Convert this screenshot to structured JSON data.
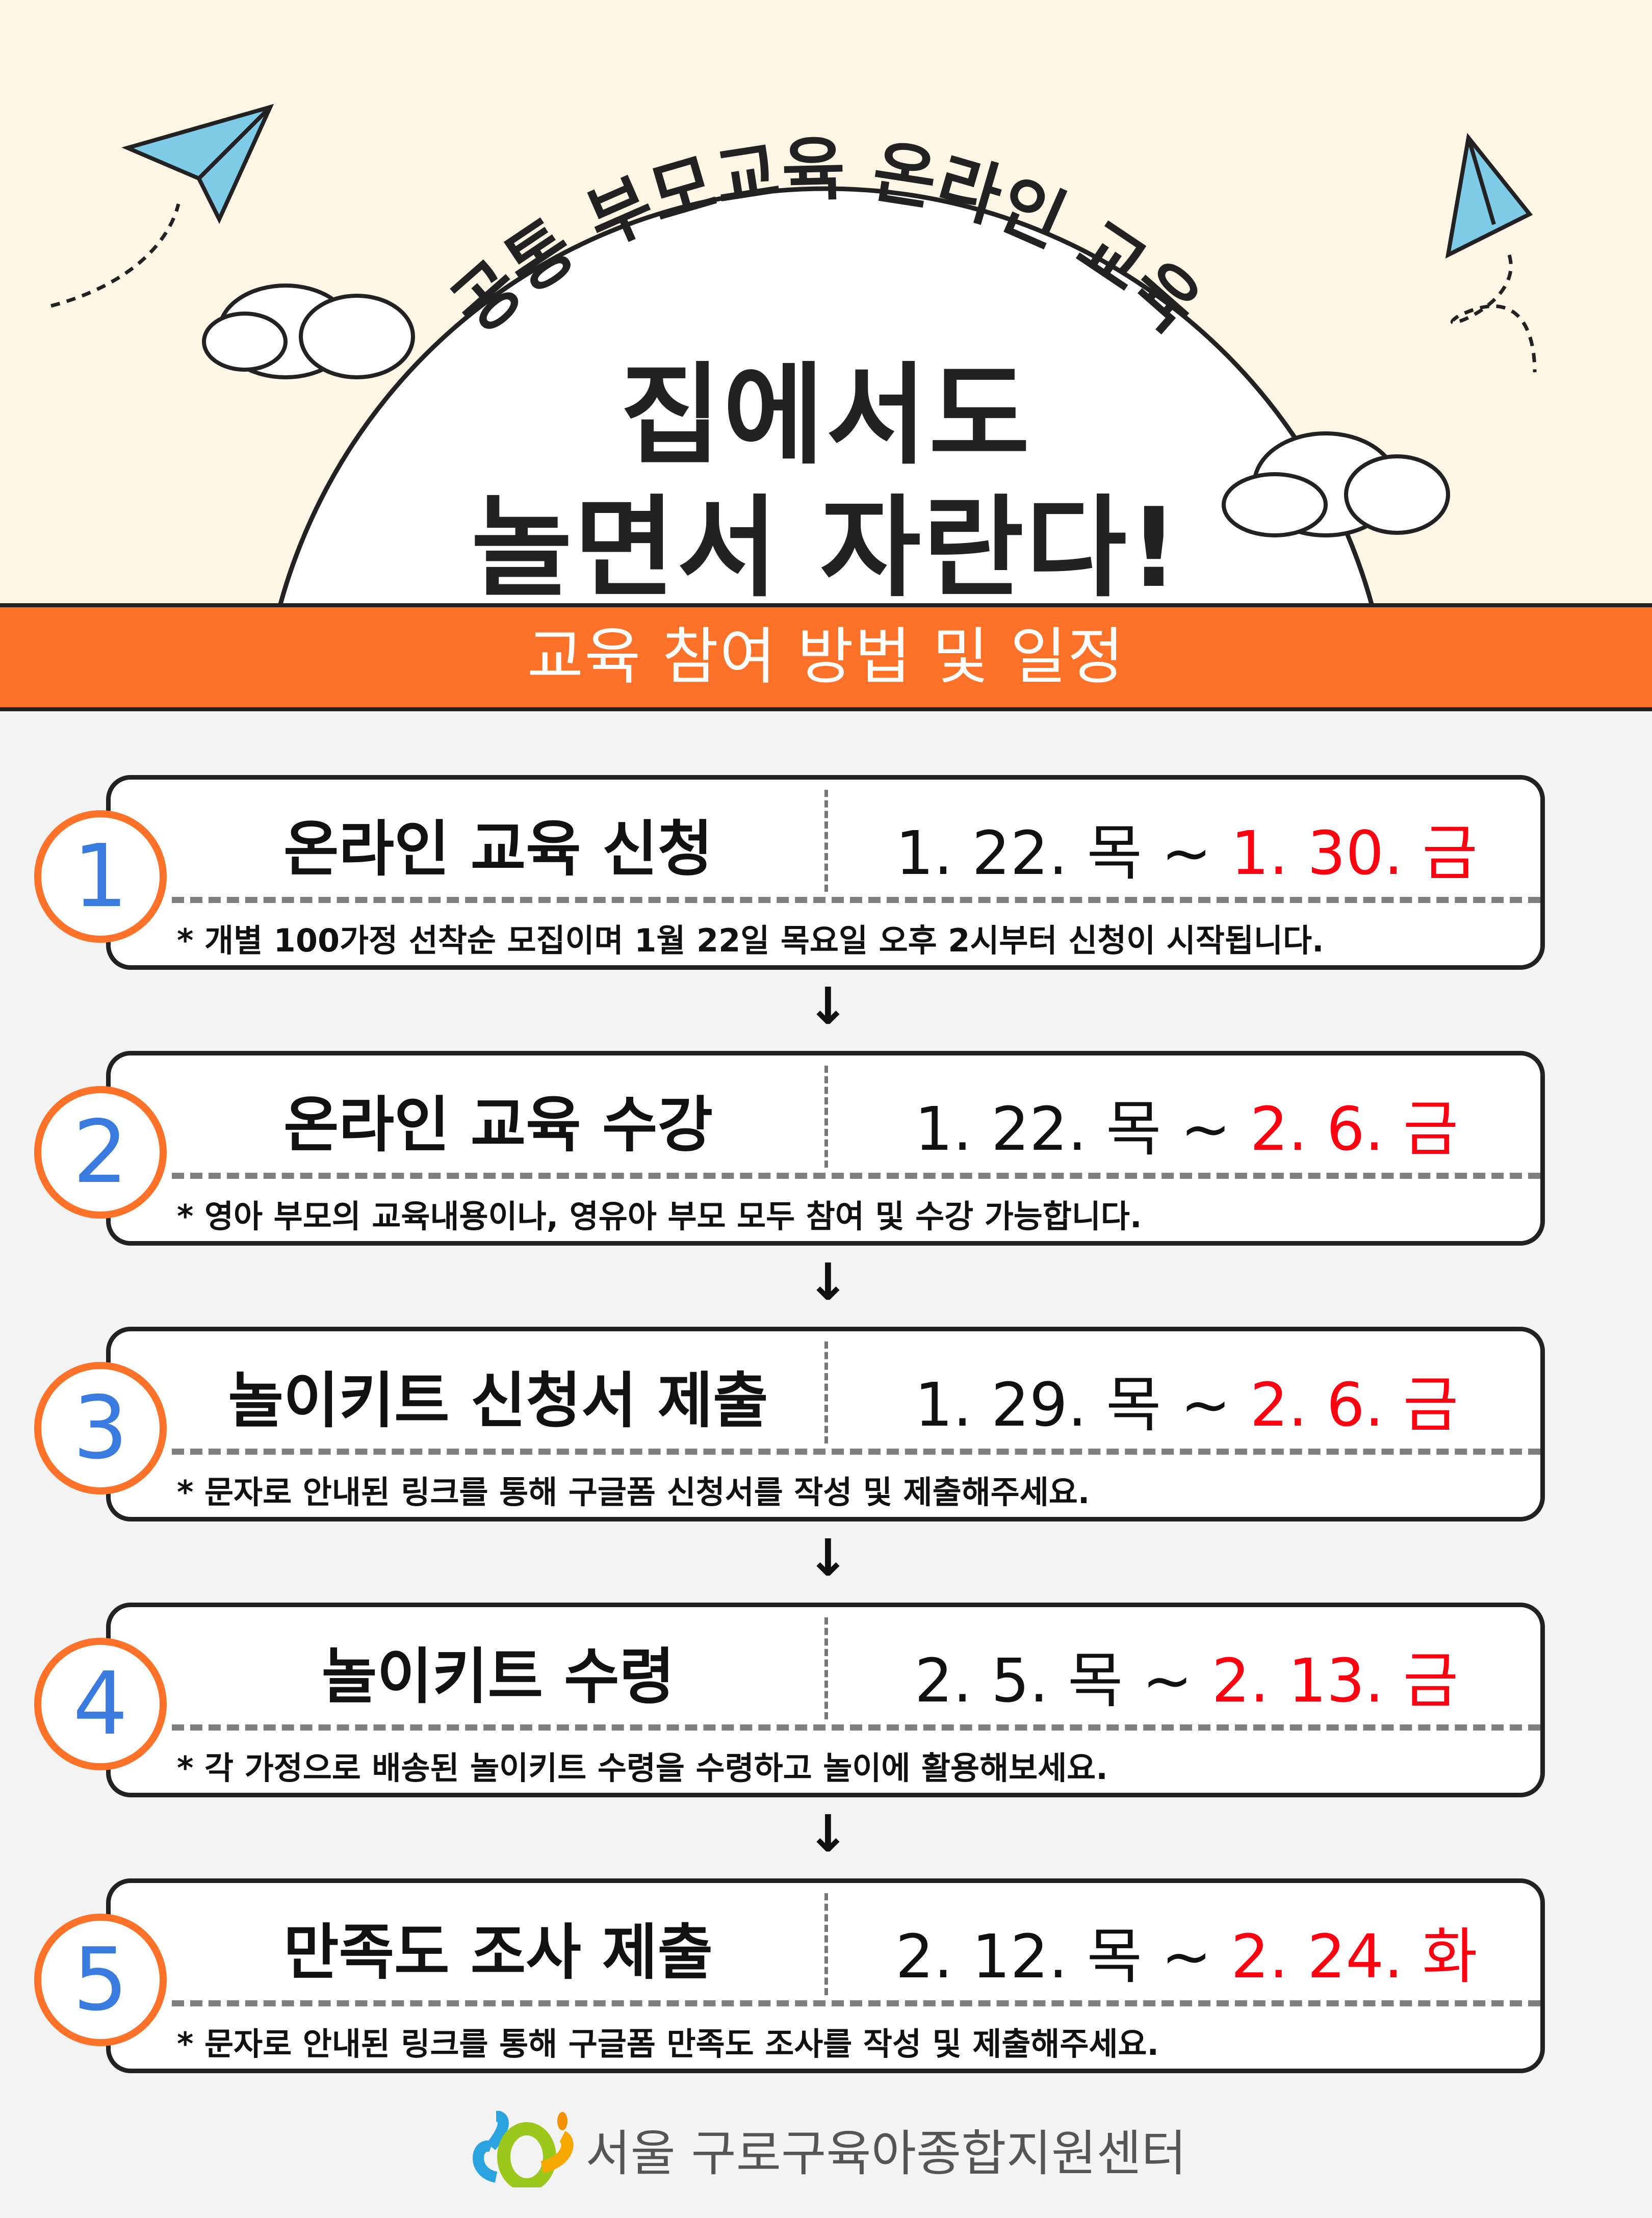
{
  "header": {
    "arc_text": "공통 부모교육 온라인 교육",
    "title_line1": "집에서도",
    "title_line2": "놀면서 자란다!"
  },
  "band": {
    "label": "교육 참여 방법 및 일정"
  },
  "colors": {
    "orange": "#fd7228",
    "red": "#ff0010",
    "number_blue": "#3a7be0",
    "cream": "#fdf6e4"
  },
  "steps": [
    {
      "number": "1",
      "title": "온라인 교육 신청",
      "start": "1. 22. 목 ~ ",
      "end": "1. 30. 금",
      "note": "* 개별 100가정 선착순 모집이며 1월 22일 목요일 오후 2시부터 신청이 시작됩니다."
    },
    {
      "number": "2",
      "title": "온라인 교육 수강",
      "start": "1. 22. 목 ~ ",
      "end": "2. 6. 금",
      "note": "* 영아 부모의 교육내용이나, 영유아 부모 모두 참여 및 수강 가능합니다."
    },
    {
      "number": "3",
      "title": "놀이키트 신청서 제출",
      "start": "1. 29. 목 ~ ",
      "end": "2. 6. 금",
      "note": "* 문자로 안내된 링크를 통해 구글폼 신청서를 작성 및 제출해주세요."
    },
    {
      "number": "4",
      "title": "놀이키트 수령",
      "start": "2. 5. 목 ~ ",
      "end": "2. 13. 금",
      "note": "* 각 가정으로 배송된 놀이키트 수령을 수령하고 놀이에 활용해보세요."
    },
    {
      "number": "5",
      "title": "만족도 조사 제출",
      "start": "2. 12. 목 ~ ",
      "end": "2. 24. 화",
      "note": "* 문자로 안내된 링크를 통해 구글폼 만족도 조사를 작성 및 제출해주세요."
    }
  ],
  "footer": {
    "org_name": "서울 구로구육아종합지원센터"
  }
}
